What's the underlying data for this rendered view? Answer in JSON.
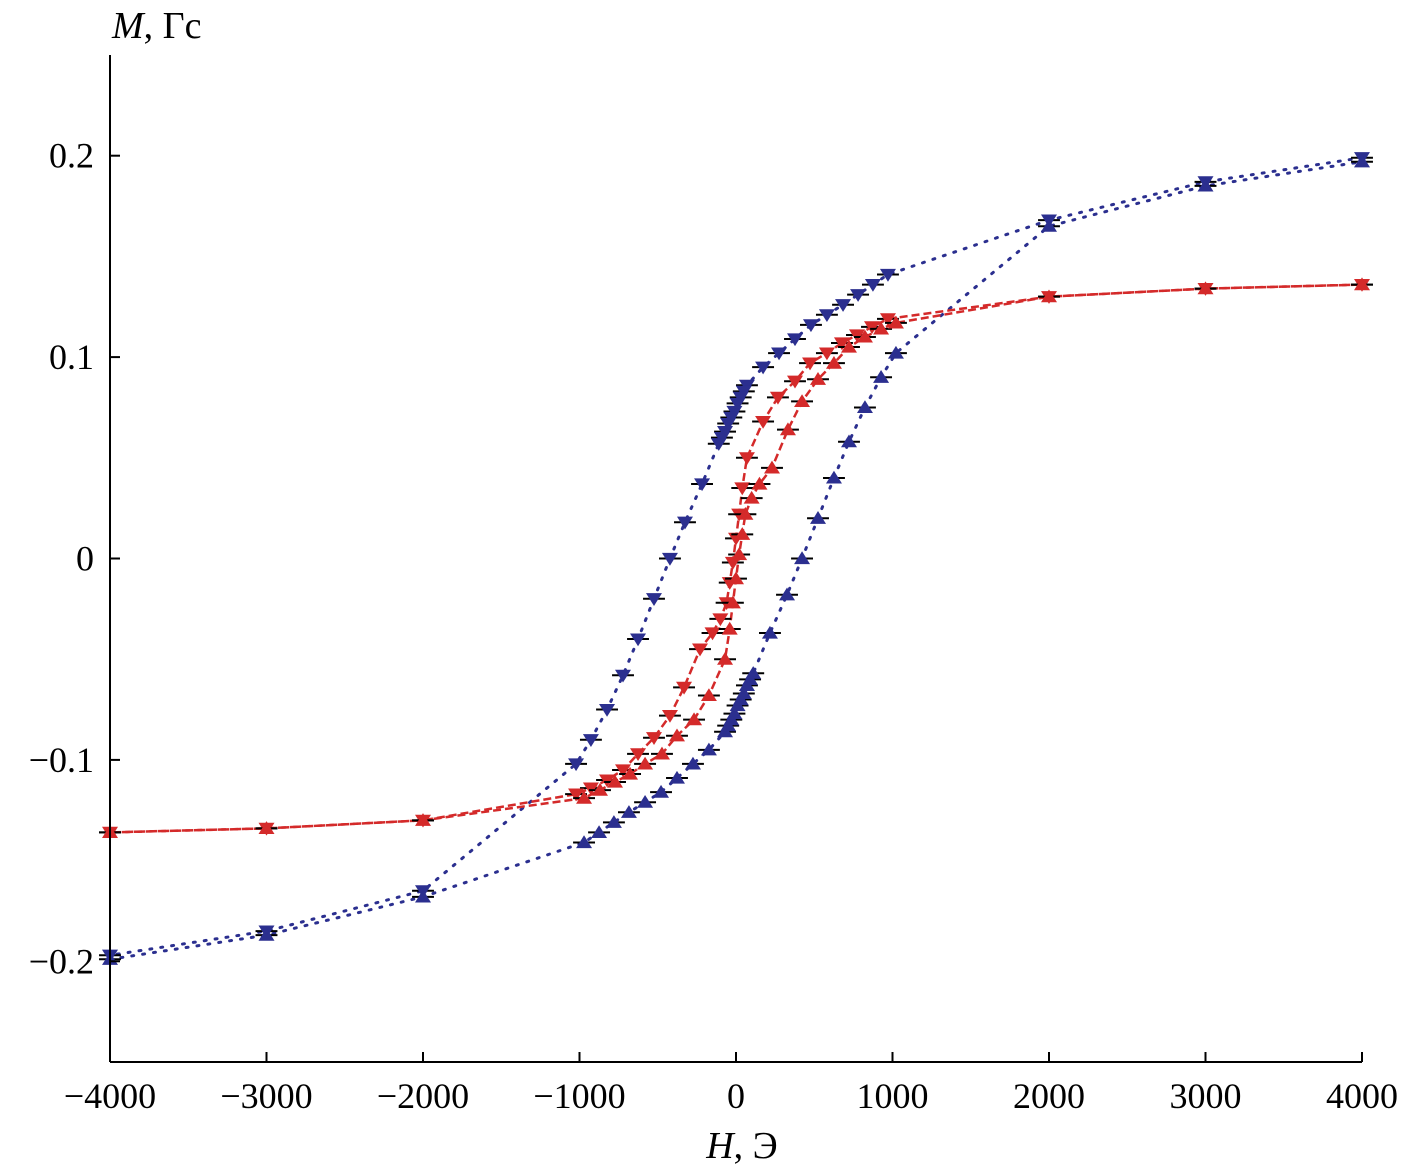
{
  "chart_data": {
    "type": "scatter",
    "title": "",
    "xlabel_var": "H",
    "xlabel_unit": ", Э",
    "ylabel_var": "M",
    "ylabel_unit": ", Гс",
    "xlim": [
      -4000,
      4000
    ],
    "ylim": [
      -0.25,
      0.25
    ],
    "grid": false,
    "legend": "none",
    "x_ticks": [
      -4000,
      -3000,
      -2000,
      -1000,
      0,
      1000,
      2000,
      3000,
      4000
    ],
    "x_tick_labels": [
      "−4000",
      "−3000",
      "−2000",
      "−1000",
      "0",
      "1000",
      "2000",
      "3000",
      "4000"
    ],
    "y_ticks": [
      -0.2,
      -0.1,
      0,
      0.1,
      0.2
    ],
    "y_tick_labels": [
      "−0.2",
      "−0.1",
      "0",
      "0.1",
      "0.2"
    ],
    "x_error": 70,
    "series": [
      {
        "marker": "triangle-down",
        "color": "#2b2f8f",
        "line": "dotted",
        "x": [
          4000,
          3000,
          2000,
          971,
          875,
          780,
          684,
          581,
          479,
          377,
          275,
          173,
          70,
          50,
          30,
          10,
          -10,
          -30,
          -50,
          -70,
          -90,
          -110,
          -217,
          -326,
          -422,
          -524,
          -626,
          -722,
          -824,
          -927,
          -1022,
          -2000,
          -3000,
          -4000
        ],
        "y": [
          0.199,
          0.187,
          0.168,
          0.141,
          0.136,
          0.131,
          0.126,
          0.121,
          0.116,
          0.109,
          0.102,
          0.095,
          0.086,
          0.083,
          0.08,
          0.077,
          0.073,
          0.07,
          0.067,
          0.063,
          0.06,
          0.057,
          0.037,
          0.018,
          0.0,
          -0.02,
          -0.04,
          -0.058,
          -0.075,
          -0.09,
          -0.102,
          -0.165,
          -0.185,
          -0.197
        ]
      },
      {
        "marker": "triangle-up",
        "color": "#2b2f8f",
        "line": "dotted",
        "x": [
          -4000,
          -3000,
          -2000,
          -971,
          -875,
          -780,
          -684,
          -581,
          -479,
          -377,
          -275,
          -173,
          -70,
          -50,
          -30,
          -10,
          10,
          30,
          50,
          70,
          90,
          110,
          217,
          326,
          422,
          524,
          626,
          722,
          824,
          927,
          1022,
          2000,
          3000,
          4000
        ],
        "y": [
          -0.199,
          -0.187,
          -0.168,
          -0.141,
          -0.136,
          -0.131,
          -0.126,
          -0.121,
          -0.116,
          -0.109,
          -0.102,
          -0.095,
          -0.086,
          -0.083,
          -0.08,
          -0.077,
          -0.073,
          -0.07,
          -0.067,
          -0.063,
          -0.06,
          -0.057,
          -0.037,
          -0.018,
          0.0,
          0.02,
          0.04,
          0.058,
          0.075,
          0.09,
          0.102,
          0.165,
          0.185,
          0.197
        ]
      },
      {
        "marker": "triangle-down",
        "color": "#d42a2a",
        "line": "dashed",
        "x": [
          4000,
          3000,
          2000,
          971,
          869,
          773,
          677,
          581,
          473,
          377,
          268,
          173,
          70,
          40,
          20,
          0,
          -20,
          -40,
          -60,
          -100,
          -150,
          -230,
          -332,
          -422,
          -524,
          -626,
          -722,
          -824,
          -927,
          -1022,
          -2000,
          -3000,
          -4000
        ],
        "y": [
          0.136,
          0.134,
          0.13,
          0.119,
          0.115,
          0.111,
          0.107,
          0.102,
          0.097,
          0.088,
          0.08,
          0.068,
          0.05,
          0.035,
          0.022,
          0.01,
          -0.002,
          -0.012,
          -0.022,
          -0.03,
          -0.037,
          -0.045,
          -0.064,
          -0.078,
          -0.089,
          -0.097,
          -0.105,
          -0.11,
          -0.114,
          -0.117,
          -0.13,
          -0.134,
          -0.136
        ]
      },
      {
        "marker": "triangle-up",
        "color": "#d42a2a",
        "line": "dashed",
        "x": [
          -4000,
          -3000,
          -2000,
          -971,
          -869,
          -773,
          -677,
          -581,
          -473,
          -377,
          -268,
          -173,
          -70,
          -40,
          -20,
          0,
          20,
          40,
          60,
          100,
          150,
          230,
          332,
          422,
          524,
          626,
          722,
          824,
          927,
          1022,
          2000,
          3000,
          4000
        ],
        "y": [
          -0.136,
          -0.134,
          -0.13,
          -0.119,
          -0.115,
          -0.111,
          -0.107,
          -0.102,
          -0.097,
          -0.088,
          -0.08,
          -0.068,
          -0.05,
          -0.035,
          -0.022,
          -0.01,
          0.002,
          0.012,
          0.022,
          0.03,
          0.037,
          0.045,
          0.064,
          0.078,
          0.089,
          0.097,
          0.105,
          0.11,
          0.114,
          0.117,
          0.13,
          0.134,
          0.136
        ]
      }
    ]
  }
}
